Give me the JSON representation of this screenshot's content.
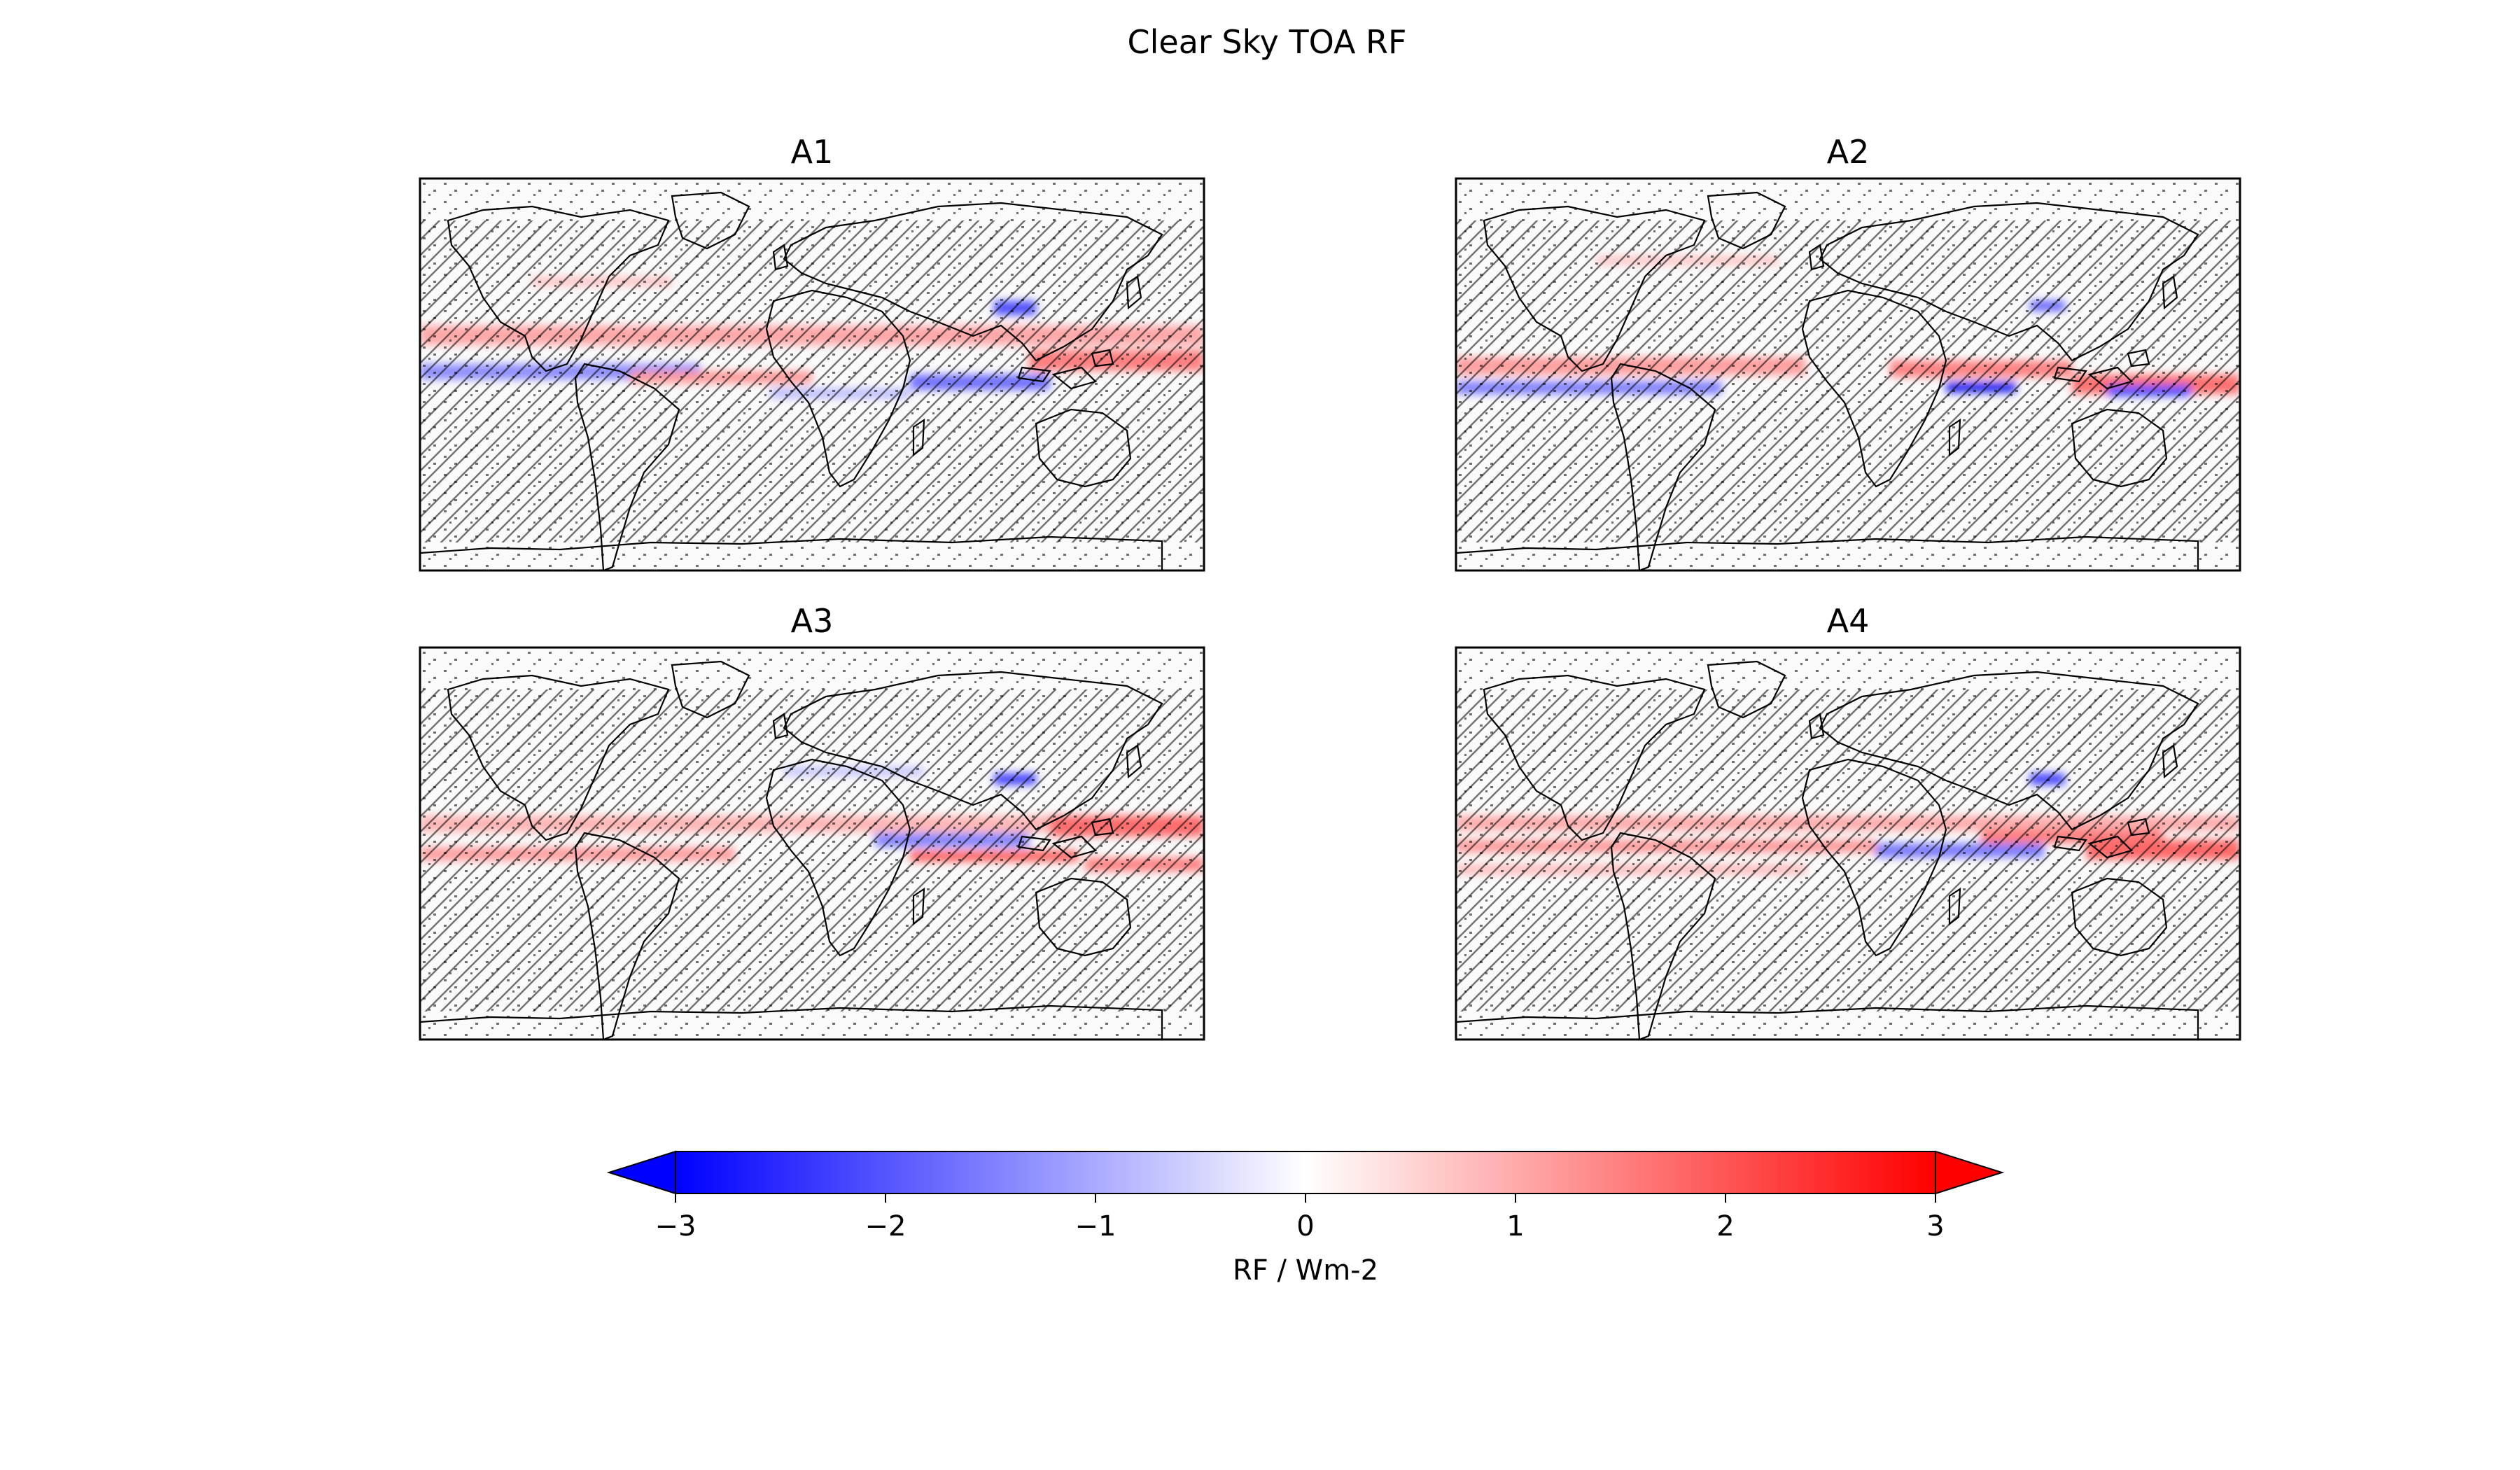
{
  "figure": {
    "title": "Clear Sky TOA RF"
  },
  "panels": [
    {
      "title": "A1"
    },
    {
      "title": "A2"
    },
    {
      "title": "A3"
    },
    {
      "title": "A4"
    }
  ],
  "colorbar": {
    "label": "RF / Wm-2",
    "vmin": -3,
    "vmax": 3,
    "extend": "both",
    "colormap": "bwr",
    "colors": {
      "low": "#0000ff",
      "mid": "#ffffff",
      "high": "#ff0000"
    },
    "ticks": [
      "−3",
      "−2",
      "−1",
      "0",
      "1",
      "2",
      "3"
    ],
    "tick_values": [
      -3,
      -2,
      -1,
      0,
      1,
      2,
      3
    ]
  },
  "map_style": {
    "coastline_color": "#000000",
    "hatch": "significance-hatching"
  }
}
